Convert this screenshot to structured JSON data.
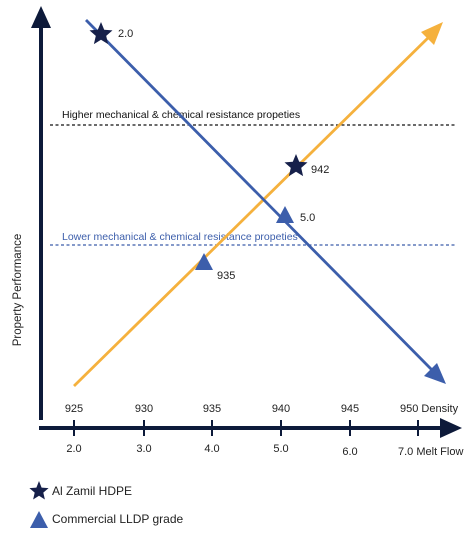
{
  "colors": {
    "axis": "#0d1a3a",
    "blue_line": "#3c5eab",
    "orange_line": "#f5b13d",
    "dashed_dark": "#111111",
    "dashed_blue": "#3c5eab",
    "star": "#16204a",
    "triangle": "#3c5eab"
  },
  "diagram": {
    "y_axis_label": "Property Performance",
    "higher_line_label": "Higher mechanical & chemical resistance propeties",
    "lower_line_label": "Lower mechanical & chemical resistance propeties",
    "density_ticks": [
      "925",
      "930",
      "935",
      "940",
      "945",
      "950 Density"
    ],
    "melt_flow_ticks": [
      "2.0",
      "3.0",
      "4.0",
      "5.0",
      "6.0",
      "7.0 Melt Flow"
    ],
    "markers": {
      "star_melt_flow": "2.0",
      "star_density": "942",
      "triangle_melt_flow": "5.0",
      "triangle_density": "935"
    }
  },
  "legend": [
    {
      "icon": "star-icon",
      "label": "Al Zamil HDPE"
    },
    {
      "icon": "triangle-icon",
      "label": "Commercial LLDP grade"
    }
  ]
}
